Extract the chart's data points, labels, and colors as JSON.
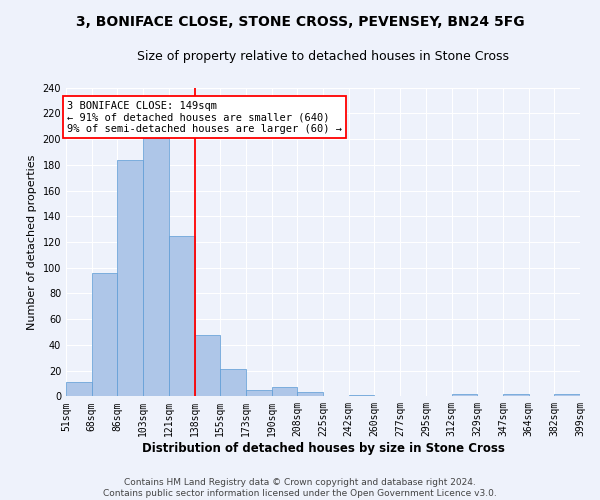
{
  "title1": "3, BONIFACE CLOSE, STONE CROSS, PEVENSEY, BN24 5FG",
  "title2": "Size of property relative to detached houses in Stone Cross",
  "xlabel": "Distribution of detached houses by size in Stone Cross",
  "ylabel": "Number of detached properties",
  "bar_values": [
    11,
    96,
    184,
    201,
    125,
    48,
    21,
    5,
    7,
    3,
    0,
    1,
    0,
    0,
    0,
    2,
    0,
    2,
    0,
    2
  ],
  "bar_color": "#aec6e8",
  "bar_edge_color": "#5b9bd5",
  "vline_x": 5.0,
  "vline_color": "red",
  "annotation_text": "3 BONIFACE CLOSE: 149sqm\n← 91% of detached houses are smaller (640)\n9% of semi-detached houses are larger (60) →",
  "annotation_box_color": "white",
  "annotation_box_edge_color": "red",
  "ylim": [
    0,
    240
  ],
  "yticks": [
    0,
    20,
    40,
    60,
    80,
    100,
    120,
    140,
    160,
    180,
    200,
    220,
    240
  ],
  "all_tick_labels": [
    "51sqm",
    "68sqm",
    "86sqm",
    "103sqm",
    "121sqm",
    "138sqm",
    "155sqm",
    "173sqm",
    "190sqm",
    "208sqm",
    "225sqm",
    "242sqm",
    "260sqm",
    "277sqm",
    "295sqm",
    "312sqm",
    "329sqm",
    "347sqm",
    "364sqm",
    "382sqm",
    "399sqm"
  ],
  "footer_line1": "Contains HM Land Registry data © Crown copyright and database right 2024.",
  "footer_line2": "Contains public sector information licensed under the Open Government Licence v3.0.",
  "background_color": "#eef2fb",
  "title1_fontsize": 10,
  "title2_fontsize": 9,
  "tick_fontsize": 7,
  "xlabel_fontsize": 8.5,
  "ylabel_fontsize": 8,
  "footer_fontsize": 6.5,
  "annotation_fontsize": 7.5
}
